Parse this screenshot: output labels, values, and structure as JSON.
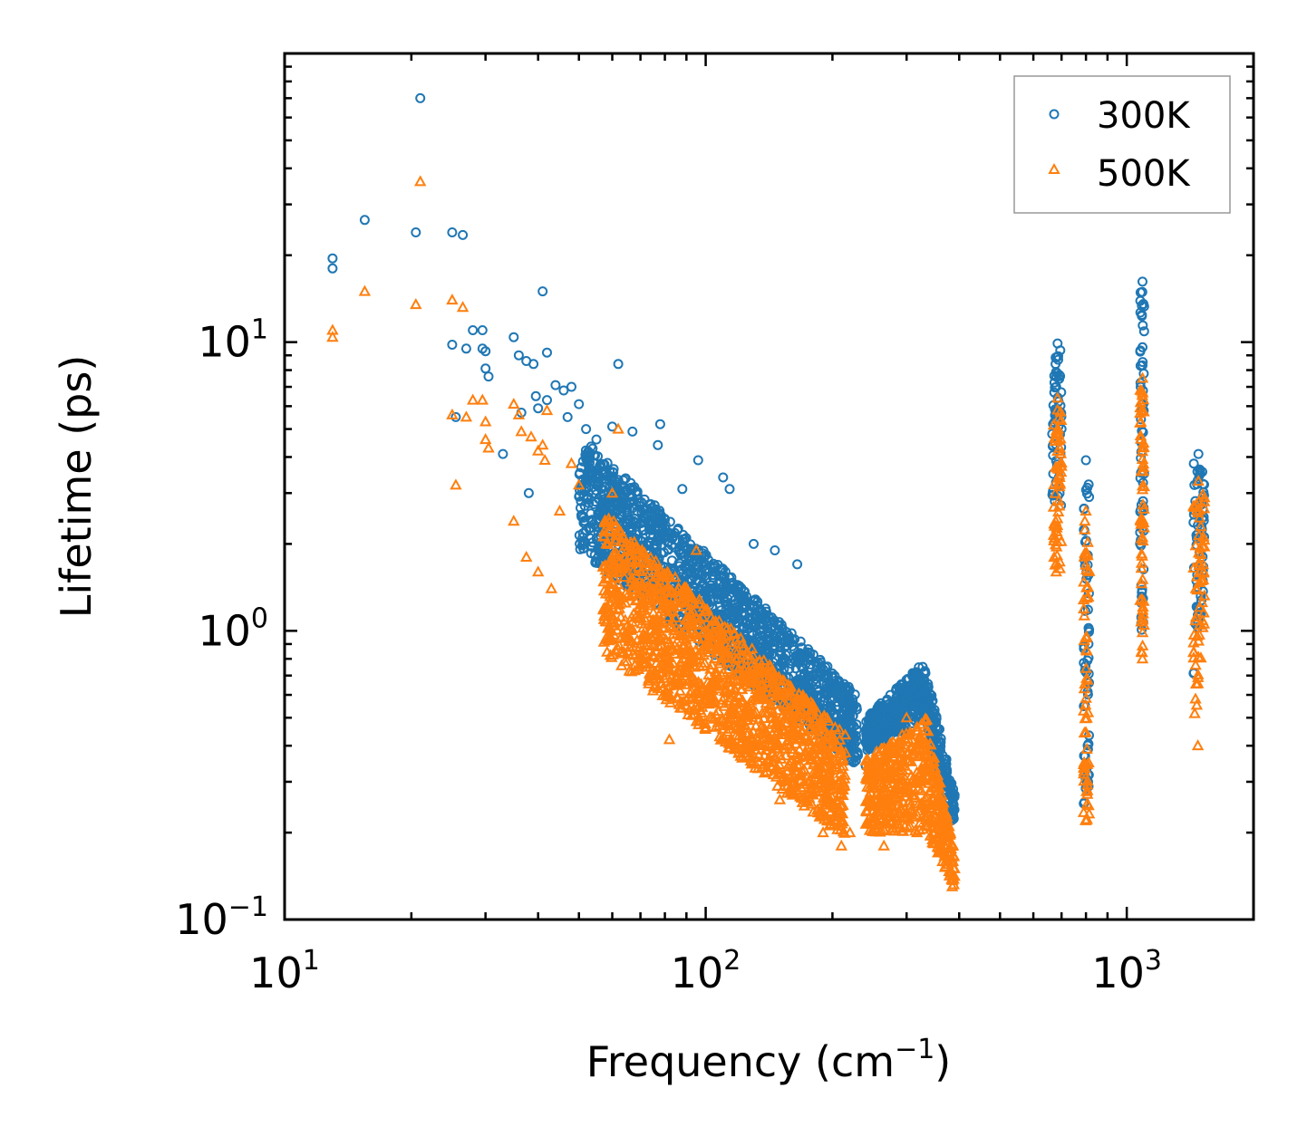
{
  "chart_data": {
    "type": "scatter",
    "title": "",
    "xlabel": "Frequency (cm",
    "xlabel_superscript": "−1",
    "xlabel_suffix": ")",
    "ylabel": "Lifetime (ps)",
    "x_scale": "log",
    "y_scale": "log",
    "xlim": [
      10,
      2000
    ],
    "ylim": [
      0.1,
      100
    ],
    "grid": false,
    "legend_position": "top-right",
    "x_ticks": [
      {
        "value": 10,
        "base": "10",
        "exp": "1"
      },
      {
        "value": 100,
        "base": "10",
        "exp": "2"
      },
      {
        "value": 1000,
        "base": "10",
        "exp": "3"
      }
    ],
    "y_ticks": [
      {
        "value": 0.1,
        "base": "10",
        "exp": "−1"
      },
      {
        "value": 1,
        "base": "10",
        "exp": "0"
      },
      {
        "value": 10,
        "base": "10",
        "exp": "1"
      }
    ],
    "series": [
      {
        "name": "300K",
        "marker": "circle",
        "color": "#1f77b4",
        "points": [
          [
            13.0,
            19.5
          ],
          [
            13.0,
            18.0
          ],
          [
            15.5,
            26.5
          ],
          [
            20.5,
            24.0
          ],
          [
            21.0,
            70.0
          ],
          [
            25.0,
            24.0
          ],
          [
            26.5,
            23.5
          ],
          [
            25.0,
            9.8
          ],
          [
            27.0,
            9.5
          ],
          [
            28.0,
            11.0
          ],
          [
            29.5,
            11.0
          ],
          [
            29.5,
            9.5
          ],
          [
            30.0,
            9.3
          ],
          [
            30.0,
            8.1
          ],
          [
            30.5,
            7.6
          ],
          [
            25.5,
            5.5
          ],
          [
            33.0,
            4.1
          ],
          [
            35.0,
            10.4
          ],
          [
            36.0,
            9.0
          ],
          [
            36.5,
            5.7
          ],
          [
            37.5,
            8.6
          ],
          [
            38.0,
            3.0
          ],
          [
            39.0,
            8.4
          ],
          [
            39.5,
            6.5
          ],
          [
            40.0,
            5.9
          ],
          [
            41.0,
            15.0
          ],
          [
            42.0,
            9.2
          ],
          [
            42.0,
            6.3
          ],
          [
            44.0,
            7.1
          ],
          [
            46.0,
            6.8
          ],
          [
            47.0,
            5.5
          ],
          [
            48.0,
            7.0
          ],
          [
            50.0,
            6.1
          ],
          [
            52.0,
            5.0
          ],
          [
            55.0,
            4.6
          ],
          [
            60.0,
            5.1
          ],
          [
            62.0,
            8.4
          ],
          [
            67.0,
            4.9
          ],
          [
            78.0,
            5.2
          ],
          [
            77.0,
            4.4
          ],
          [
            96.0,
            3.9
          ],
          [
            110.0,
            3.4
          ],
          [
            114.0,
            3.1
          ],
          [
            88.0,
            3.1
          ],
          [
            130.0,
            2.0
          ],
          [
            146.0,
            1.9
          ],
          [
            165.0,
            1.7
          ],
          [
            240.0,
            0.34
          ],
          [
            383.0,
            0.22
          ],
          [
            390.0,
            0.27
          ],
          [
            685.0,
            9.9
          ],
          [
            800.0,
            3.9
          ],
          [
            1090.0,
            16.2
          ],
          [
            1480.0,
            4.1
          ]
        ]
      },
      {
        "name": "500K",
        "marker": "triangle",
        "color": "#ff7f0e",
        "points": [
          [
            13.0,
            11.0
          ],
          [
            13.0,
            10.4
          ],
          [
            15.5,
            15.0
          ],
          [
            20.5,
            13.5
          ],
          [
            21.0,
            36.0
          ],
          [
            25.0,
            14.0
          ],
          [
            26.5,
            13.2
          ],
          [
            25.0,
            5.6
          ],
          [
            25.5,
            3.2
          ],
          [
            27.0,
            5.5
          ],
          [
            28.0,
            6.3
          ],
          [
            29.5,
            6.3
          ],
          [
            30.0,
            5.3
          ],
          [
            30.0,
            4.6
          ],
          [
            30.5,
            4.3
          ],
          [
            35.0,
            6.1
          ],
          [
            36.0,
            5.6
          ],
          [
            36.5,
            4.9
          ],
          [
            35.0,
            2.4
          ],
          [
            37.5,
            1.8
          ],
          [
            38.5,
            4.7
          ],
          [
            40.0,
            4.2
          ],
          [
            41.0,
            4.4
          ],
          [
            41.5,
            3.9
          ],
          [
            42.0,
            5.8
          ],
          [
            40.0,
            1.6
          ],
          [
            43.0,
            1.4
          ],
          [
            45.0,
            2.6
          ],
          [
            48.0,
            3.8
          ],
          [
            50.0,
            3.2
          ],
          [
            62.0,
            5.0
          ],
          [
            60.0,
            3.0
          ],
          [
            65.0,
            0.95
          ],
          [
            75.0,
            0.62
          ],
          [
            82.0,
            0.42
          ],
          [
            95.0,
            1.9
          ],
          [
            120.0,
            0.38
          ],
          [
            150.0,
            0.26
          ],
          [
            190.0,
            0.2
          ],
          [
            210.0,
            0.18
          ],
          [
            220.0,
            0.2
          ],
          [
            265.0,
            0.18
          ],
          [
            300.0,
            0.5
          ],
          [
            330.0,
            0.25
          ],
          [
            385.0,
            0.13
          ],
          [
            390.0,
            0.15
          ],
          [
            685.0,
            6.4
          ],
          [
            680.0,
            1.6
          ],
          [
            800.0,
            2.6
          ],
          [
            800.0,
            0.22
          ],
          [
            1090.0,
            7.5
          ],
          [
            1090.0,
            0.8
          ],
          [
            1480.0,
            3.3
          ],
          [
            1475.0,
            0.4
          ]
        ],
        "bands": [
          {
            "x_range": [
              57,
              215
            ],
            "y_top": [
              2.6,
              0.44
            ],
            "y_bottom": [
              0.85,
              0.19
            ]
          },
          {
            "x_range": [
              240,
              335
            ],
            "y_top": [
              0.36,
              0.5
            ],
            "y_bottom": [
              0.2,
              0.2
            ]
          },
          {
            "x_range": [
              335,
              390
            ],
            "y_top": [
              0.5,
              0.17
            ],
            "y_bottom": [
              0.2,
              0.13
            ]
          },
          {
            "x_range": [
              670,
              700
            ],
            "y_top": [
              6.0,
              6.0
            ],
            "y_bottom": [
              1.6,
              1.6
            ]
          },
          {
            "x_range": [
              790,
              815
            ],
            "y_top": [
              2.5,
              2.5
            ],
            "y_bottom": [
              0.22,
              0.22
            ]
          },
          {
            "x_range": [
              1075,
              1100
            ],
            "y_top": [
              7.0,
              7.0
            ],
            "y_bottom": [
              0.8,
              0.8
            ]
          },
          {
            "x_range": [
              1440,
              1530
            ],
            "y_top": [
              3.2,
              3.2
            ],
            "y_bottom": [
              0.4,
              1.1
            ]
          }
        ]
      }
    ],
    "series_300K_bands": [
      {
        "x_range": [
          50,
          230
        ],
        "y_top": [
          4.8,
          0.6
        ],
        "y_bottom": [
          1.9,
          0.34
        ]
      },
      {
        "x_range": [
          240,
          330
        ],
        "y_top": [
          0.5,
          0.78
        ],
        "y_bottom": [
          0.38,
          0.5
        ]
      },
      {
        "x_range": [
          330,
          390
        ],
        "y_top": [
          0.78,
          0.27
        ],
        "y_bottom": [
          0.5,
          0.21
        ]
      },
      {
        "x_range": [
          665,
          700
        ],
        "y_top": [
          9.5,
          9.5
        ],
        "y_bottom": [
          2.7,
          2.7
        ]
      },
      {
        "x_range": [
          790,
          815
        ],
        "y_top": [
          3.8,
          3.8
        ],
        "y_bottom": [
          0.25,
          0.25
        ]
      },
      {
        "x_range": [
          1075,
          1100
        ],
        "y_top": [
          15.0,
          15.0
        ],
        "y_bottom": [
          1.0,
          1.0
        ]
      },
      {
        "x_range": [
          1440,
          1530
        ],
        "y_top": [
          3.8,
          3.8
        ],
        "y_bottom": [
          0.65,
          1.5
        ]
      }
    ]
  }
}
